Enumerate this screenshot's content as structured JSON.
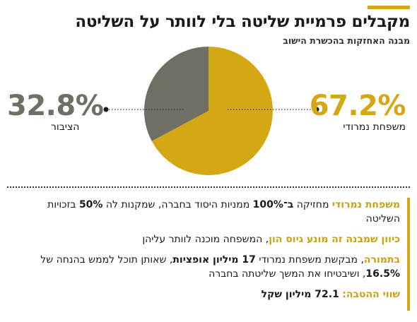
{
  "header": {
    "title": "מקבלים פרמיית שליטה בלי לוותר על השליטה",
    "subtitle": "מבנה האחזקות בהכשרת הישוב"
  },
  "colors": {
    "accent": "#d4a814",
    "family": "#d4a814",
    "public": "#6f6f63"
  },
  "chart_data": {
    "type": "pie",
    "title": "",
    "slices": [
      {
        "label": "משפחת נמרודי",
        "value": 67.2,
        "value_label": "67.2%",
        "color": "#d4a814"
      },
      {
        "label": "הציבור",
        "value": 32.8,
        "value_label": "32.8%",
        "color": "#6f6f63"
      }
    ]
  },
  "notes": {
    "n1": {
      "lead": "משפחת נמרודי",
      "t1": " מחזיקה ",
      "b1": "ב־100%",
      "t2": " ממניות היסוד בחברה, שמקנות לה ",
      "b2": "50%",
      "t3": " בזכויות השליטה"
    },
    "n2": {
      "lead": "כיוון שמבנה זה מונע גיוס הון",
      "t1": ", המשפחה מוכנה לוותר עליהן"
    },
    "n3": {
      "lead": "בתמורה",
      "t1": ", מבקשת משפחת נמרודי ",
      "b1": "17 מיליון אופציות",
      "t2": ", שאותן תוכל לממש בהנחה של ",
      "b2": "16.5%",
      "t3": ", ושיבטיחו את המשך שליטתה בחברה"
    },
    "n4": {
      "lead": "שווי ההטבה:",
      "b1": "72.1 מיליון שקל"
    }
  }
}
